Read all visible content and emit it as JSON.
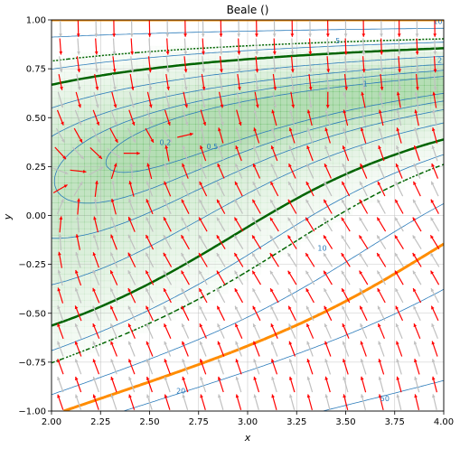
{
  "chart_data": {
    "type": "contour",
    "title": "Beale ()",
    "xlabel": "x",
    "ylabel": "y",
    "xlim": [
      2.0,
      4.0
    ],
    "ylim": [
      -1.0,
      1.0
    ],
    "x_ticks": [
      "2.00",
      "2.25",
      "2.50",
      "2.75",
      "3.00",
      "3.25",
      "3.50",
      "3.75",
      "4.00"
    ],
    "y_ticks": [
      "1.00",
      "0.75",
      "0.50",
      "0.25",
      "0.00",
      "−0.25",
      "−0.50",
      "−0.75",
      "−1.00"
    ],
    "grid": true,
    "contour_levels": [
      0.2,
      0.5,
      1,
      2,
      5,
      10,
      20,
      50
    ],
    "contour_labels": [
      "10",
      "5",
      "2",
      "1",
      "0.5",
      "0.2",
      "10",
      "20",
      "50"
    ],
    "field": "Beale function log-scale heat map with gradient vector field",
    "colors": {
      "contour": "#2b7bba",
      "curve_dark_green": "#006400",
      "curve_orange": "#ff8c00",
      "arrow_red": "#ff0000",
      "arrow_gray": "#c0c0c0",
      "fill_green": "#2ca02c",
      "grid": "#b0b0b0"
    }
  }
}
